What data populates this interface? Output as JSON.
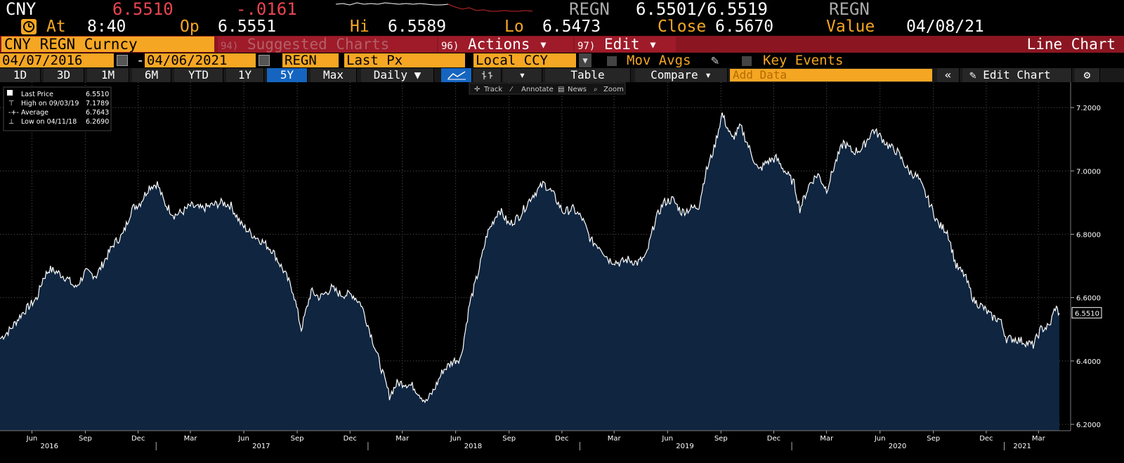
{
  "quote": {
    "symbol": "CNY",
    "last": "6.5510",
    "change": "-.0161",
    "regn_left": "REGN",
    "bid_ask": "6.5501/6.5519",
    "regn_right": "REGN"
  },
  "stats": {
    "at_label": "At",
    "at_value": "8:40",
    "op_label": "Op",
    "op_value": "6.5551",
    "hi_label": "Hi",
    "hi_value": "6.5589",
    "lo_label": "Lo",
    "lo_value": "6.5473",
    "close_label": "Close",
    "close_value": "6.5670",
    "value_label": "Value",
    "value_date": "04/08/21"
  },
  "menu": {
    "ticker": "CNY REGN Curncy",
    "suggested_num": "94)",
    "suggested": "Suggested Charts",
    "actions_num": "96)",
    "actions": "Actions ▾",
    "edit_num": "97)",
    "edit": "Edit ▾",
    "chart_type": "Line Chart"
  },
  "settings": {
    "start_date": "04/07/2016",
    "dash": "-",
    "end_date": "04/06/2021",
    "source": "REGN",
    "field": "Last Px",
    "currency": "Local CCY",
    "mov_avgs": "Mov Avgs",
    "key_events": "Key Events"
  },
  "toolbar": {
    "periods": [
      "1D",
      "3D",
      "1M",
      "6M",
      "YTD",
      "1Y",
      "5Y",
      "Max"
    ],
    "selected_period": "5Y",
    "frequency": "Daily ▼",
    "table": "Table",
    "compare": "Compare ▾",
    "add_data": "Add Data",
    "collapse": "«",
    "edit_chart": "Edit Chart",
    "settings_icon": "gear-icon"
  },
  "chart_tools": {
    "track": "Track",
    "annotate": "Annotate",
    "news": "News",
    "zoom": "Zoom"
  },
  "legend": {
    "last_price_label": "Last Price",
    "last_price": "6.5510",
    "high_label": "High on 09/03/19",
    "high": "7.1789",
    "average_label": "Average",
    "average": "6.7643",
    "low_label": "Low on 04/11/18",
    "low": "6.2690"
  },
  "chart_data": {
    "type": "area",
    "title": "",
    "xlabel": "",
    "ylabel": "",
    "ylim": [
      6.18,
      7.28
    ],
    "y_ticks": [
      "6.2000",
      "6.4000",
      "6.6000",
      "6.8000",
      "7.0000",
      "7.2000"
    ],
    "y_tick_values": [
      6.2,
      6.4,
      6.6,
      6.8,
      7.0,
      7.2
    ],
    "last_value_label": "6.5510",
    "x_month_ticks": [
      {
        "date": "2016-06-01",
        "label": "Jun"
      },
      {
        "date": "2016-09-01",
        "label": "Sep"
      },
      {
        "date": "2016-12-01",
        "label": "Dec"
      },
      {
        "date": "2017-03-01",
        "label": "Mar"
      },
      {
        "date": "2017-06-01",
        "label": "Jun"
      },
      {
        "date": "2017-09-01",
        "label": "Sep"
      },
      {
        "date": "2017-12-01",
        "label": "Dec"
      },
      {
        "date": "2018-03-01",
        "label": "Mar"
      },
      {
        "date": "2018-06-01",
        "label": "Jun"
      },
      {
        "date": "2018-09-01",
        "label": "Sep"
      },
      {
        "date": "2018-12-01",
        "label": "Dec"
      },
      {
        "date": "2019-03-01",
        "label": "Mar"
      },
      {
        "date": "2019-06-01",
        "label": "Jun"
      },
      {
        "date": "2019-09-01",
        "label": "Sep"
      },
      {
        "date": "2019-12-01",
        "label": "Dec"
      },
      {
        "date": "2020-03-01",
        "label": "Mar"
      },
      {
        "date": "2020-06-01",
        "label": "Jun"
      },
      {
        "date": "2020-09-01",
        "label": "Sep"
      },
      {
        "date": "2020-12-01",
        "label": "Dec"
      },
      {
        "date": "2021-03-01",
        "label": "Mar"
      }
    ],
    "x_year_labels": [
      {
        "date": "2016-07-01",
        "label": "2016"
      },
      {
        "date": "2017-07-01",
        "label": "2017"
      },
      {
        "date": "2018-07-01",
        "label": "2018"
      },
      {
        "date": "2019-07-01",
        "label": "2019"
      },
      {
        "date": "2020-07-01",
        "label": "2020"
      },
      {
        "date": "2021-02-01",
        "label": "2021"
      }
    ],
    "x_range": [
      "2016-04-07",
      "2021-04-06"
    ],
    "series": [
      {
        "points": [
          [
            "2016-04-07",
            6.47
          ],
          [
            "2016-04-25",
            6.5
          ],
          [
            "2016-05-15",
            6.55
          ],
          [
            "2016-05-31",
            6.58
          ],
          [
            "2016-06-10",
            6.6
          ],
          [
            "2016-06-20",
            6.66
          ],
          [
            "2016-07-01",
            6.69
          ],
          [
            "2016-07-15",
            6.68
          ],
          [
            "2016-08-01",
            6.66
          ],
          [
            "2016-08-15",
            6.63
          ],
          [
            "2016-09-01",
            6.68
          ],
          [
            "2016-09-20",
            6.67
          ],
          [
            "2016-10-05",
            6.72
          ],
          [
            "2016-10-20",
            6.77
          ],
          [
            "2016-11-05",
            6.8
          ],
          [
            "2016-11-20",
            6.88
          ],
          [
            "2016-12-05",
            6.9
          ],
          [
            "2016-12-20",
            6.95
          ],
          [
            "2017-01-03",
            6.96
          ],
          [
            "2017-01-15",
            6.9
          ],
          [
            "2017-02-01",
            6.86
          ],
          [
            "2017-02-15",
            6.87
          ],
          [
            "2017-03-01",
            6.89
          ],
          [
            "2017-03-20",
            6.88
          ],
          [
            "2017-04-05",
            6.89
          ],
          [
            "2017-04-25",
            6.9
          ],
          [
            "2017-05-10",
            6.89
          ],
          [
            "2017-05-28",
            6.83
          ],
          [
            "2017-06-15",
            6.8
          ],
          [
            "2017-07-01",
            6.78
          ],
          [
            "2017-07-20",
            6.75
          ],
          [
            "2017-08-10",
            6.68
          ],
          [
            "2017-08-25",
            6.62
          ],
          [
            "2017-09-08",
            6.5
          ],
          [
            "2017-09-25",
            6.62
          ],
          [
            "2017-10-10",
            6.6
          ],
          [
            "2017-10-30",
            6.63
          ],
          [
            "2017-11-15",
            6.61
          ],
          [
            "2017-12-05",
            6.61
          ],
          [
            "2017-12-20",
            6.58
          ],
          [
            "2018-01-05",
            6.49
          ],
          [
            "2018-01-20",
            6.4
          ],
          [
            "2018-02-07",
            6.29
          ],
          [
            "2018-02-20",
            6.33
          ],
          [
            "2018-03-05",
            6.33
          ],
          [
            "2018-03-20",
            6.32
          ],
          [
            "2018-04-11",
            6.27
          ],
          [
            "2018-04-25",
            6.31
          ],
          [
            "2018-05-10",
            6.37
          ],
          [
            "2018-05-28",
            6.4
          ],
          [
            "2018-06-10",
            6.41
          ],
          [
            "2018-06-25",
            6.58
          ],
          [
            "2018-07-10",
            6.68
          ],
          [
            "2018-07-25",
            6.8
          ],
          [
            "2018-08-15",
            6.88
          ],
          [
            "2018-09-01",
            6.83
          ],
          [
            "2018-09-20",
            6.86
          ],
          [
            "2018-10-10",
            6.92
          ],
          [
            "2018-10-31",
            6.96
          ],
          [
            "2018-11-15",
            6.93
          ],
          [
            "2018-12-03",
            6.87
          ],
          [
            "2018-12-20",
            6.88
          ],
          [
            "2019-01-05",
            6.85
          ],
          [
            "2019-01-20",
            6.78
          ],
          [
            "2019-02-05",
            6.76
          ],
          [
            "2019-02-20",
            6.72
          ],
          [
            "2019-03-10",
            6.71
          ],
          [
            "2019-03-25",
            6.72
          ],
          [
            "2019-04-10",
            6.71
          ],
          [
            "2019-04-25",
            6.73
          ],
          [
            "2019-05-10",
            6.84
          ],
          [
            "2019-05-25",
            6.9
          ],
          [
            "2019-06-10",
            6.91
          ],
          [
            "2019-06-25",
            6.87
          ],
          [
            "2019-07-10",
            6.88
          ],
          [
            "2019-07-25",
            6.89
          ],
          [
            "2019-08-05",
            6.99
          ],
          [
            "2019-08-20",
            7.07
          ],
          [
            "2019-09-03",
            7.18
          ],
          [
            "2019-09-20",
            7.1
          ],
          [
            "2019-10-05",
            7.14
          ],
          [
            "2019-10-20",
            7.07
          ],
          [
            "2019-11-05",
            7.0
          ],
          [
            "2019-11-20",
            7.03
          ],
          [
            "2019-12-05",
            7.04
          ],
          [
            "2019-12-20",
            7.0
          ],
          [
            "2020-01-05",
            6.96
          ],
          [
            "2020-01-15",
            6.88
          ],
          [
            "2020-02-01",
            6.96
          ],
          [
            "2020-02-15",
            6.99
          ],
          [
            "2020-03-01",
            6.94
          ],
          [
            "2020-03-15",
            7.02
          ],
          [
            "2020-03-30",
            7.09
          ],
          [
            "2020-04-15",
            7.06
          ],
          [
            "2020-05-01",
            7.07
          ],
          [
            "2020-05-20",
            7.13
          ],
          [
            "2020-06-01",
            7.11
          ],
          [
            "2020-06-15",
            7.08
          ],
          [
            "2020-07-01",
            7.06
          ],
          [
            "2020-07-20",
            7.0
          ],
          [
            "2020-08-05",
            6.98
          ],
          [
            "2020-08-25",
            6.9
          ],
          [
            "2020-09-10",
            6.83
          ],
          [
            "2020-09-25",
            6.81
          ],
          [
            "2020-10-10",
            6.7
          ],
          [
            "2020-10-25",
            6.67
          ],
          [
            "2020-11-10",
            6.59
          ],
          [
            "2020-11-25",
            6.57
          ],
          [
            "2020-12-10",
            6.54
          ],
          [
            "2020-12-25",
            6.53
          ],
          [
            "2021-01-05",
            6.47
          ],
          [
            "2021-01-20",
            6.47
          ],
          [
            "2021-02-05",
            6.46
          ],
          [
            "2021-02-20",
            6.45
          ],
          [
            "2021-03-05",
            6.5
          ],
          [
            "2021-03-20",
            6.51
          ],
          [
            "2021-03-30",
            6.57
          ],
          [
            "2021-04-06",
            6.551
          ]
        ]
      }
    ]
  },
  "colors": {
    "accent_orange": "#f5a623",
    "negative_red": "#e8454f",
    "menu_red": "#8b1622",
    "area_fill": "#0f2540",
    "line": "#ffffff",
    "selected_blue": "#1565c0"
  }
}
